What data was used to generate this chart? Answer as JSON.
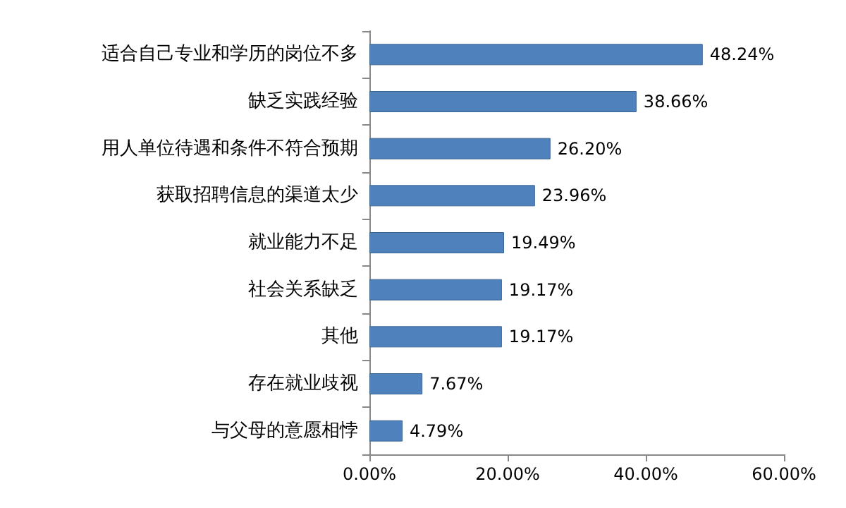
{
  "chart_data": {
    "type": "bar",
    "orientation": "horizontal",
    "categories": [
      "适合自己专业和学历的岗位不多",
      "缺乏实践经验",
      "用人单位待遇和条件不符合预期",
      "获取招聘信息的渠道太少",
      "就业能力不足",
      "社会关系缺乏",
      "其他",
      "存在就业歧视",
      "与父母的意愿相悖"
    ],
    "values": [
      48.24,
      38.66,
      26.2,
      23.96,
      19.49,
      19.17,
      19.17,
      7.67,
      4.79
    ],
    "value_labels": [
      "48.24%",
      "38.66%",
      "26.20%",
      "23.96%",
      "19.49%",
      "19.17%",
      "19.17%",
      "7.67%",
      "4.79%"
    ],
    "color": "#4f81bd",
    "xlim": [
      0,
      60
    ],
    "xticks": [
      {
        "value": 0,
        "label": "0.00%"
      },
      {
        "value": 20,
        "label": "20.00%"
      },
      {
        "value": 40,
        "label": "40.00%"
      },
      {
        "value": 60,
        "label": "60.00%"
      }
    ],
    "grid": false
  }
}
